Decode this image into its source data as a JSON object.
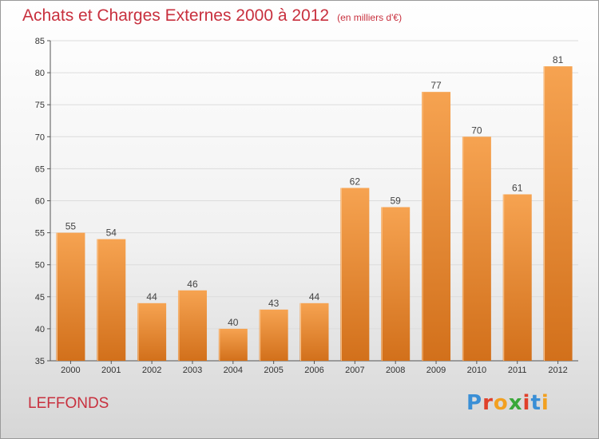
{
  "header": {
    "title": "Achats et Charges Externes 2000 à 2012",
    "unit": "(en milliers d'€)"
  },
  "footer": {
    "place": "LEFFONDS",
    "logo": "Proxiti",
    "logo_colors": [
      "#3a8fd6",
      "#e0402a",
      "#f2a020",
      "#3aa83a",
      "#e0402a",
      "#3a8fd6",
      "#f2a020"
    ]
  },
  "chart_data": {
    "type": "bar",
    "title": "Achats et Charges Externes 2000 à 2012",
    "subtitle": "(en milliers d'€)",
    "categories": [
      "2000",
      "2001",
      "2002",
      "2003",
      "2004",
      "2005",
      "2006",
      "2007",
      "2008",
      "2009",
      "2010",
      "2011",
      "2012"
    ],
    "values": [
      55,
      54,
      44,
      46,
      40,
      43,
      44,
      62,
      59,
      77,
      70,
      61,
      81
    ],
    "ylim": [
      35,
      85
    ],
    "yticks": [
      35,
      40,
      45,
      50,
      55,
      60,
      65,
      70,
      75,
      80,
      85
    ],
    "grid": true,
    "bar_color_top": "#f6a351",
    "bar_color_bottom": "#d2701b"
  }
}
